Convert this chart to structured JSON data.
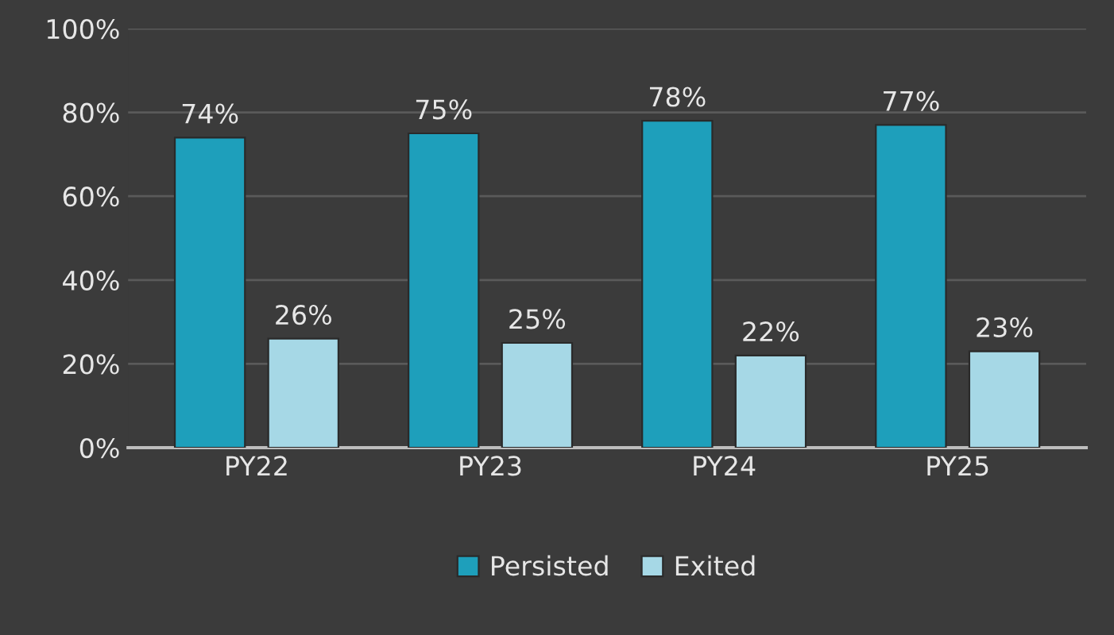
{
  "chart_data": {
    "type": "bar",
    "categories": [
      "PY22",
      "PY23",
      "PY24",
      "PY25"
    ],
    "series": [
      {
        "name": "Persisted",
        "color": "#1e9fbb",
        "values": [
          74,
          75,
          78,
          77
        ],
        "value_labels": [
          "74%",
          "75%",
          "78%",
          "77%"
        ]
      },
      {
        "name": "Exited",
        "color": "#a6d8e6",
        "values": [
          26,
          25,
          22,
          23
        ],
        "value_labels": [
          "26%",
          "25%",
          "22%",
          "23%"
        ]
      }
    ],
    "ylim": [
      0,
      100
    ],
    "yticks": [
      {
        "value": 0,
        "label": "0%"
      },
      {
        "value": 20,
        "label": "20%"
      },
      {
        "value": 40,
        "label": "40%"
      },
      {
        "value": 60,
        "label": "60%"
      },
      {
        "value": 80,
        "label": "80%"
      },
      {
        "value": 100,
        "label": "100%"
      }
    ],
    "grid": "y",
    "legend": "bottom"
  }
}
